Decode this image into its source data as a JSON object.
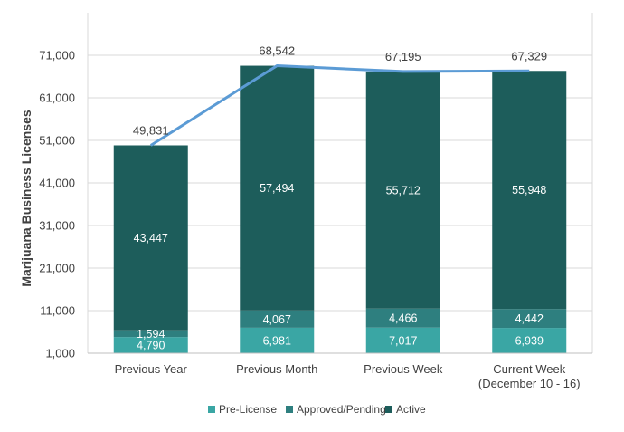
{
  "chart_data": {
    "type": "bar",
    "stacked": true,
    "ylabel": "Marijuana Business Licenses",
    "xlabel": "",
    "ylim": [
      1000,
      81000
    ],
    "yticks": [
      "1,000",
      "11,000",
      "21,000",
      "31,000",
      "41,000",
      "51,000",
      "61,000",
      "71,000"
    ],
    "grid": true,
    "legend_position": "bottom",
    "categories": [
      [
        "Previous Year"
      ],
      [
        "Previous Month"
      ],
      [
        "Previous Week"
      ],
      [
        "Current Week",
        "(December 10 - 16)"
      ]
    ],
    "series": [
      {
        "name": "Pre-License",
        "color": "#3aa6a4",
        "values": [
          4790,
          6981,
          7017,
          6939
        ],
        "labels": [
          "4,790",
          "6,981",
          "7,017",
          "6,939"
        ]
      },
      {
        "name": "Approved/Pending",
        "color": "#2e7f7f",
        "values": [
          1594,
          4067,
          4466,
          4442
        ],
        "labels": [
          "1,594",
          "4,067",
          "4,466",
          "4,442"
        ]
      },
      {
        "name": "Active",
        "color": "#1d5d5b",
        "values": [
          43447,
          57494,
          55712,
          55948
        ],
        "labels": [
          "43,447",
          "57,494",
          "55,712",
          "55,948"
        ]
      }
    ],
    "totals": {
      "color": "#5b9bd5",
      "values": [
        49831,
        68542,
        67195,
        67329
      ],
      "labels": [
        "49,831",
        "68,542",
        "67,195",
        "67,329"
      ]
    }
  }
}
